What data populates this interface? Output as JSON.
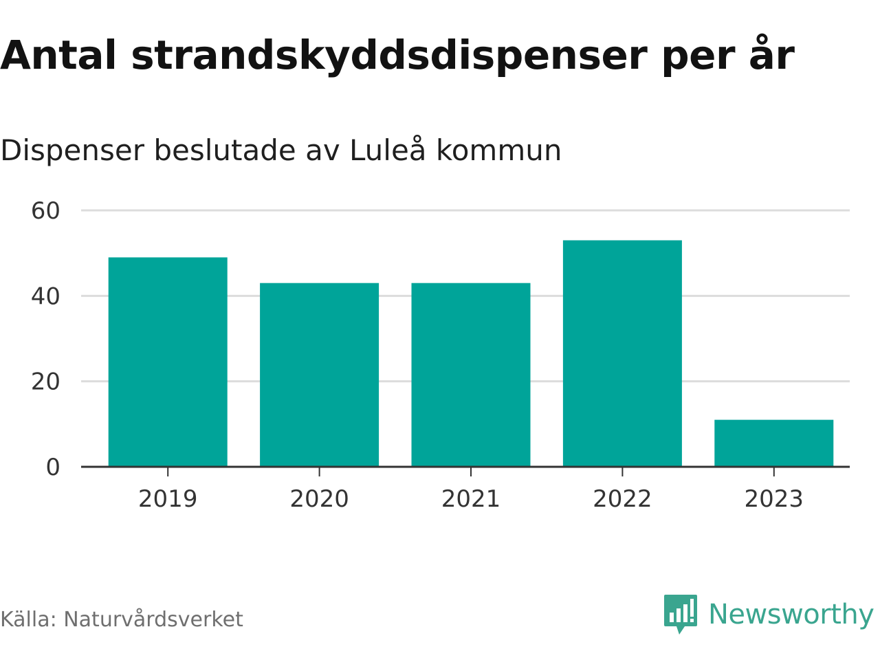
{
  "header": {
    "title": "Antal strandskyddsdispenser per år",
    "subtitle": "Dispenser beslutade av Luleå kommun"
  },
  "footer": {
    "source": "Källa: Naturvårdsverket",
    "brand": "Newsworthy",
    "brand_icon": "newsworthy-logo-icon"
  },
  "colors": {
    "bar": "#00A499",
    "grid": "#dcdcdc",
    "axis": "#333333",
    "brand": "#3aa58f"
  },
  "chart_data": {
    "type": "bar",
    "title": "Antal strandskyddsdispenser per år",
    "subtitle": "Dispenser beslutade av Luleå kommun",
    "categories": [
      "2019",
      "2020",
      "2021",
      "2022",
      "2023"
    ],
    "values": [
      49,
      43,
      43,
      53,
      11
    ],
    "xlabel": "",
    "ylabel": "",
    "ylim": [
      0,
      60
    ],
    "yticks": [
      0,
      20,
      40,
      60
    ],
    "grid": true,
    "legend": "none"
  }
}
